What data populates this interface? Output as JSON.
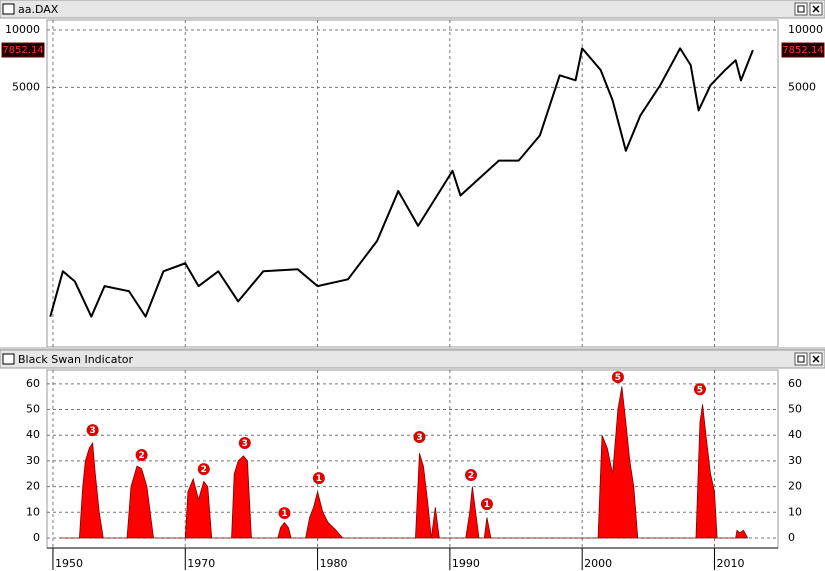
{
  "chart_data": [
    {
      "type": "line",
      "title": "aa.DAX",
      "color": "#000000",
      "log_y": true,
      "grid": true,
      "last_value": 7852.14,
      "xlim": [
        1949.1,
        2014.8
      ],
      "xticks": [
        1950,
        1970,
        1980,
        1990,
        2000,
        2010
      ],
      "ylim": [
        216,
        11290
      ],
      "yticks": [
        5000,
        10000
      ],
      "x": [
        1949.6,
        1951.5,
        1953.3,
        1955.8,
        1957.8,
        1961.5,
        1964,
        1966.7,
        1970,
        1971,
        1972.5,
        1974,
        1975.9,
        1978.5,
        1980,
        1982.3,
        1984.5,
        1986.1,
        1987.6,
        1990.2,
        1990.8,
        1993.7,
        1995.2,
        1996.8,
        1998.3,
        1999.5,
        2000,
        2001.4,
        2002.3,
        2003.3,
        2004.4,
        2005.9,
        2007.4,
        2008.2,
        2008.8,
        2009.7,
        2010.8,
        2011.6,
        2012,
        2012.9
      ],
      "values": [
        312,
        540,
        478,
        312,
        451,
        424,
        312,
        540,
        595,
        451,
        540,
        375,
        540,
        553,
        451,
        490,
        780,
        1425,
        935,
        1820,
        1350,
        2060,
        2060,
        2790,
        5780,
        5440,
        8010,
        6160,
        4270,
        2320,
        3560,
        5130,
        8010,
        6540,
        3780,
        5130,
        6160,
        6940,
        5440,
        7840
      ]
    },
    {
      "type": "area",
      "title": "Black Swan Indicator",
      "color": "#ff0000",
      "grid": true,
      "xlim": [
        1949.1,
        2014.8
      ],
      "xticks": [
        1950,
        1970,
        1980,
        1990,
        2000,
        2010
      ],
      "ylim": [
        -3.9,
        65.4
      ],
      "yticks": [
        0,
        10,
        20,
        30,
        40,
        50,
        60
      ],
      "x": [
        1951,
        1954.0,
        1954.5,
        1954.9,
        1955.5,
        1956.0,
        1956.4,
        1957.0,
        1957.6,
        1961.2,
        1961.8,
        1962.7,
        1963.4,
        1964.2,
        1964.8,
        1965.2,
        1970,
        1970.2,
        1970.6,
        1971.0,
        1971.4,
        1971.7,
        1972.0,
        1973.5,
        1973.7,
        1974.0,
        1974.4,
        1974.7,
        1975.0,
        1977.0,
        1977.2,
        1977.5,
        1977.8,
        1978.0,
        1979.1,
        1979.4,
        1979.7,
        1980,
        1980.4,
        1980.8,
        1981.4,
        1981.9,
        1987.4,
        1987.7,
        1988.0,
        1988.3,
        1988.6,
        1988.9,
        1989.2,
        1991.2,
        1991.5,
        1991.7,
        1992.0,
        1992.2,
        1992.6,
        1992.8,
        1993.1,
        2001.2,
        2001.5,
        2001.9,
        2002.3,
        2002.7,
        2003.0,
        2003.3,
        2003.6,
        2003.9,
        2004.2,
        2008.6,
        2008.9,
        2009.1,
        2009.4,
        2009.7,
        2010.0,
        2010.2,
        2011.6,
        2011.7,
        2011.9,
        2012.2,
        2012.5
      ],
      "values": [
        0,
        0,
        20,
        30,
        35,
        37,
        25,
        10,
        0,
        0,
        20,
        28,
        27,
        20,
        8,
        0,
        0,
        18,
        23,
        15,
        22,
        20,
        0,
        0,
        25,
        30,
        32,
        30,
        0,
        0,
        4,
        6,
        4,
        0,
        0,
        8,
        12,
        18,
        10,
        6,
        3,
        0,
        0,
        33,
        28,
        15,
        0,
        12,
        0,
        0,
        10,
        20,
        8,
        0,
        0,
        8,
        0,
        0,
        40,
        35,
        25,
        50,
        59,
        45,
        30,
        20,
        0,
        0,
        45,
        52,
        38,
        25,
        18,
        0,
        0,
        3,
        2,
        3,
        0
      ],
      "annotations": [
        {
          "x": 1956.0,
          "y": 42,
          "label": "3"
        },
        {
          "x": 1963.4,
          "y": 32.3,
          "label": "2"
        },
        {
          "x": 1971.4,
          "y": 26.8,
          "label": "2"
        },
        {
          "x": 1974.5,
          "y": 37,
          "label": "3"
        },
        {
          "x": 1977.5,
          "y": 9.7,
          "label": "1"
        },
        {
          "x": 1980.1,
          "y": 23.3,
          "label": "1"
        },
        {
          "x": 1987.7,
          "y": 39.3,
          "label": "3"
        },
        {
          "x": 1991.6,
          "y": 24.5,
          "label": "2"
        },
        {
          "x": 1992.8,
          "y": 13.2,
          "label": "1"
        },
        {
          "x": 2002.7,
          "y": 62.6,
          "label": "5"
        },
        {
          "x": 2008.9,
          "y": 57.9,
          "label": "5"
        }
      ]
    }
  ]
}
